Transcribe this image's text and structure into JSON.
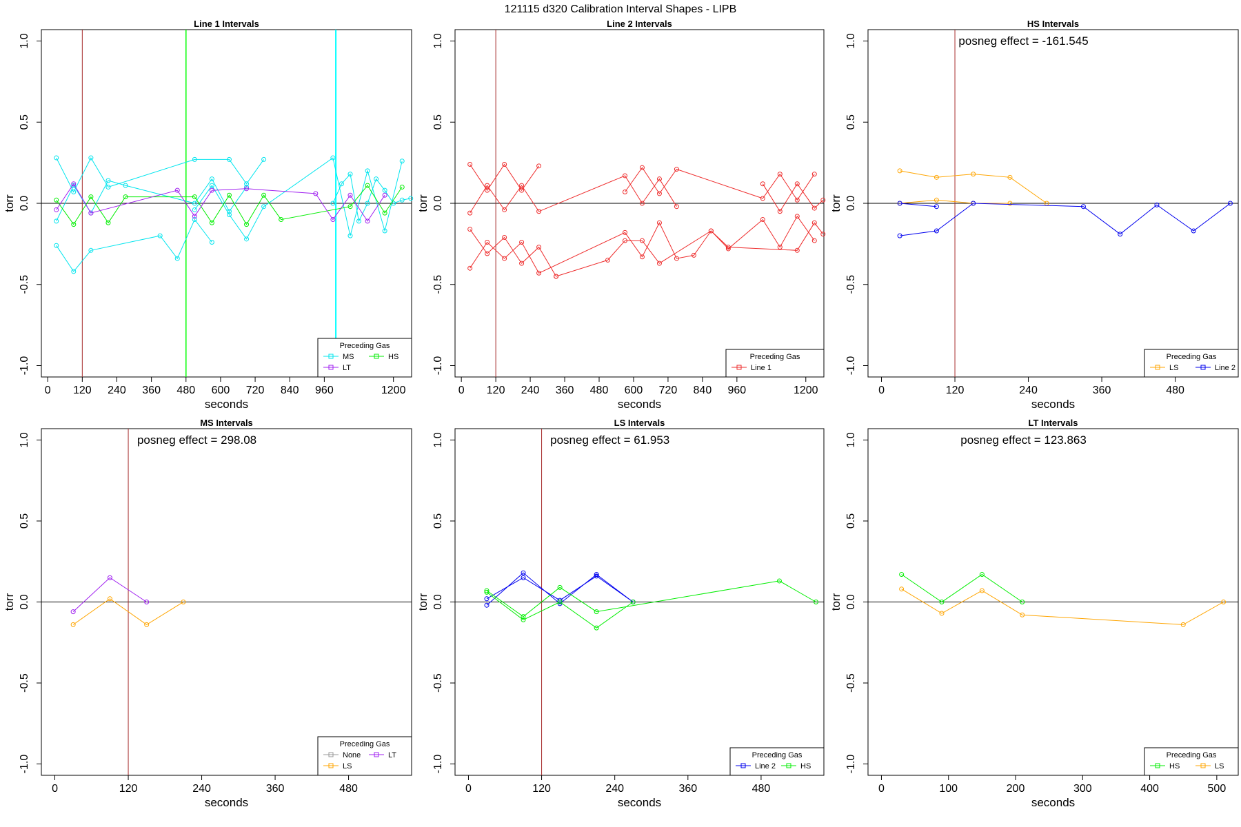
{
  "figure_title": "121115   d320   Calibration Interval Shapes - LIPB",
  "chart_data": [
    {
      "type": "line",
      "title": "Line 1 Intervals",
      "xlabel": "seconds",
      "ylabel": "torr",
      "xlim": [
        -22,
        1263
      ],
      "ylim": [
        -1.07,
        1.07
      ],
      "xticks": [
        0,
        120,
        240,
        360,
        480,
        600,
        720,
        840,
        960,
        1200
      ],
      "yticks": [
        -1.0,
        -0.5,
        0.0,
        0.5,
        1.0
      ],
      "vlines": [
        {
          "x": 120,
          "color": "#a52a2a",
          "width": 1
        },
        {
          "x": 480,
          "color": "#00ff00",
          "width": 1.5
        },
        {
          "x": 1000,
          "color": "#00ffff",
          "width": 2
        }
      ],
      "hline": 0,
      "legend": {
        "title": "Preceding Gas",
        "position": "bottom-right",
        "columns": 2,
        "items": [
          {
            "label": "MS",
            "color": "#00e5ee"
          },
          {
            "label": "HS",
            "color": "#00ee00"
          },
          {
            "label": "LT",
            "color": "#a020f0"
          }
        ]
      },
      "series": [
        {
          "color": "#00e5ee",
          "x": [
            30,
            90,
            150,
            210,
            510,
            630,
            690,
            750
          ],
          "y": [
            0.28,
            0.07,
            0.28,
            0.1,
            0.27,
            0.27,
            0.12,
            0.27
          ]
        },
        {
          "color": "#00e5ee",
          "x": [
            30,
            90,
            150,
            210,
            270,
            510,
            570,
            630,
            690
          ],
          "y": [
            -0.11,
            0.11,
            -0.06,
            0.14,
            0.11,
            0.0,
            0.15,
            -0.05,
            0.1
          ]
        },
        {
          "color": "#00e5ee",
          "x": [
            30,
            90,
            150,
            390,
            450,
            510,
            570
          ],
          "y": [
            -0.26,
            -0.42,
            -0.29,
            -0.2,
            -0.34,
            -0.1,
            -0.24
          ]
        },
        {
          "color": "#00e5ee",
          "x": [
            510,
            570,
            630,
            690,
            750,
            990,
            1050,
            1110,
            1170,
            1230
          ],
          "y": [
            -0.04,
            0.11,
            -0.07,
            -0.22,
            -0.02,
            0.28,
            -0.2,
            0.2,
            -0.17,
            0.26
          ]
        },
        {
          "color": "#00e5ee",
          "x": [
            990,
            1020,
            1050,
            1080,
            1110,
            1140,
            1170,
            1200,
            1230,
            1260
          ],
          "y": [
            0.0,
            0.12,
            0.18,
            -0.11,
            0.0,
            0.15,
            0.08,
            0.0,
            0.02,
            0.03
          ]
        },
        {
          "color": "#00ee00",
          "x": [
            30,
            90,
            150,
            210,
            270,
            510,
            570,
            630,
            690,
            750,
            810,
            1050,
            1110,
            1170,
            1230
          ],
          "y": [
            0.02,
            -0.13,
            0.04,
            -0.12,
            0.04,
            0.04,
            -0.12,
            0.05,
            -0.13,
            0.05,
            -0.1,
            -0.02,
            0.11,
            -0.06,
            0.1
          ]
        },
        {
          "color": "#a020f0",
          "x": [
            30,
            90,
            150,
            450,
            510,
            570,
            690,
            930,
            990,
            1050,
            1110,
            1170
          ],
          "y": [
            -0.04,
            0.12,
            -0.06,
            0.08,
            -0.08,
            0.08,
            0.09,
            0.06,
            -0.1,
            0.05,
            -0.11,
            0.05
          ]
        }
      ]
    },
    {
      "type": "line",
      "title": "Line 2 Intervals",
      "xlabel": "seconds",
      "ylabel": "torr",
      "xlim": [
        -22,
        1263
      ],
      "ylim": [
        -1.07,
        1.07
      ],
      "xticks": [
        0,
        120,
        240,
        360,
        480,
        600,
        720,
        840,
        960,
        1200
      ],
      "yticks": [
        -1.0,
        -0.5,
        0.0,
        0.5,
        1.0
      ],
      "vlines": [
        {
          "x": 120,
          "color": "#a52a2a",
          "width": 1
        }
      ],
      "hline": 0,
      "legend": {
        "title": "Preceding Gas",
        "position": "bottom-right",
        "columns": 1,
        "items": [
          {
            "label": "Line 1",
            "color": "#ee2c2c"
          }
        ]
      },
      "series": [
        {
          "color": "#ee2c2c",
          "x": [
            30,
            90,
            150,
            210,
            270
          ],
          "y": [
            0.24,
            0.08,
            0.24,
            0.08,
            0.23
          ]
        },
        {
          "color": "#ee2c2c",
          "x": [
            30,
            90,
            150,
            210,
            270,
            570,
            630,
            690,
            750
          ],
          "y": [
            -0.06,
            0.11,
            -0.04,
            0.11,
            -0.05,
            0.17,
            0.0,
            0.15,
            -0.02
          ]
        },
        {
          "color": "#ee2c2c",
          "x": [
            570,
            630,
            690,
            750,
            1050,
            1110,
            1170,
            1230
          ],
          "y": [
            0.07,
            0.22,
            0.06,
            0.21,
            0.03,
            0.18,
            0.02,
            0.18
          ]
        },
        {
          "color": "#ee2c2c",
          "x": [
            1050,
            1110,
            1170,
            1230,
            1260
          ],
          "y": [
            0.12,
            -0.05,
            0.12,
            -0.03,
            0.02
          ]
        },
        {
          "color": "#ee2c2c",
          "x": [
            30,
            90,
            150,
            210,
            270,
            330
          ],
          "y": [
            -0.16,
            -0.31,
            -0.21,
            -0.37,
            -0.27,
            -0.45
          ]
        },
        {
          "color": "#ee2c2c",
          "x": [
            30,
            90,
            150,
            210,
            270,
            570,
            630,
            690,
            750,
            810,
            870,
            930,
            1050,
            1110,
            1170,
            1230
          ],
          "y": [
            -0.4,
            -0.24,
            -0.34,
            -0.24,
            -0.43,
            -0.18,
            -0.33,
            -0.12,
            -0.34,
            -0.32,
            -0.17,
            -0.28,
            -0.1,
            -0.27,
            -0.08,
            -0.23
          ]
        },
        {
          "color": "#ee2c2c",
          "x": [
            330,
            510,
            570,
            630,
            690,
            870,
            930,
            1170,
            1230,
            1260
          ],
          "y": [
            -0.45,
            -0.35,
            -0.23,
            -0.23,
            -0.37,
            -0.17,
            -0.27,
            -0.29,
            -0.12,
            -0.19
          ]
        }
      ]
    },
    {
      "type": "line",
      "title": "HS Intervals",
      "annotation": "posneg effect = -161.545",
      "xlabel": "seconds",
      "ylabel": "torr",
      "xlim": [
        -22,
        583
      ],
      "ylim": [
        -1.07,
        1.07
      ],
      "xticks": [
        0,
        120,
        240,
        360,
        480
      ],
      "yticks": [
        -1.0,
        -0.5,
        0.0,
        0.5,
        1.0
      ],
      "vlines": [
        {
          "x": 120,
          "color": "#a52a2a",
          "width": 1
        }
      ],
      "hline": 0,
      "legend": {
        "title": "Preceding Gas",
        "position": "bottom-right",
        "columns": 2,
        "items": [
          {
            "label": "LS",
            "color": "#ffa500"
          },
          {
            "label": "Line 2",
            "color": "#0000ee"
          }
        ]
      },
      "series": [
        {
          "color": "#ffa500",
          "x": [
            30,
            90,
            150,
            210,
            270
          ],
          "y": [
            0.2,
            0.16,
            0.18,
            0.16,
            0.0
          ]
        },
        {
          "color": "#ffa500",
          "x": [
            30,
            90,
            150,
            210
          ],
          "y": [
            0.0,
            0.02,
            0.0,
            0.0
          ]
        },
        {
          "color": "#0000ee",
          "x": [
            30,
            90,
            150,
            330,
            390,
            450,
            510,
            570
          ],
          "y": [
            -0.2,
            -0.17,
            0.0,
            -0.02,
            -0.19,
            -0.01,
            -0.17,
            0.0
          ]
        },
        {
          "color": "#0000ee",
          "x": [
            30,
            90
          ],
          "y": [
            0.0,
            -0.02
          ]
        }
      ]
    },
    {
      "type": "line",
      "title": "MS Intervals",
      "annotation": "posneg effect = 298.08",
      "xlabel": "seconds",
      "ylabel": "torr",
      "xlim": [
        -22,
        583
      ],
      "ylim": [
        -1.07,
        1.07
      ],
      "xticks": [
        0,
        120,
        240,
        360,
        480
      ],
      "yticks": [
        -1.0,
        -0.5,
        0.0,
        0.5,
        1.0
      ],
      "vlines": [
        {
          "x": 120,
          "color": "#a52a2a",
          "width": 1
        }
      ],
      "hline": 0,
      "legend": {
        "title": "Preceding Gas",
        "position": "bottom-right",
        "columns": 2,
        "items": [
          {
            "label": "None",
            "color": "#999999"
          },
          {
            "label": "LT",
            "color": "#a020f0"
          },
          {
            "label": "LS",
            "color": "#ffa500"
          }
        ]
      },
      "series": [
        {
          "color": "#a020f0",
          "x": [
            30,
            90,
            150
          ],
          "y": [
            -0.06,
            0.15,
            0.0
          ]
        },
        {
          "color": "#ffa500",
          "x": [
            30,
            90,
            150,
            210
          ],
          "y": [
            -0.14,
            0.02,
            -0.14,
            0.0
          ]
        }
      ]
    },
    {
      "type": "line",
      "title": "LS Intervals",
      "annotation": "posneg effect = 61.953",
      "xlabel": "seconds",
      "ylabel": "torr",
      "xlim": [
        -22,
        583
      ],
      "ylim": [
        -1.07,
        1.07
      ],
      "xticks": [
        0,
        120,
        240,
        360,
        480
      ],
      "yticks": [
        -1.0,
        -0.5,
        0.0,
        0.5,
        1.0
      ],
      "vlines": [
        {
          "x": 120,
          "color": "#a52a2a",
          "width": 1
        }
      ],
      "hline": 0,
      "legend": {
        "title": "Preceding Gas",
        "position": "bottom-right",
        "columns": 2,
        "items": [
          {
            "label": "Line 2",
            "color": "#0000ee"
          },
          {
            "label": "HS",
            "color": "#00ee00"
          }
        ]
      },
      "series": [
        {
          "color": "#0000ee",
          "x": [
            30,
            90,
            150,
            210,
            270
          ],
          "y": [
            -0.02,
            0.18,
            -0.01,
            0.17,
            0.0
          ]
        },
        {
          "color": "#0000ee",
          "x": [
            30,
            90,
            150,
            210,
            270
          ],
          "y": [
            0.02,
            0.15,
            0.01,
            0.16,
            0.0
          ]
        },
        {
          "color": "#00ee00",
          "x": [
            30,
            90,
            150,
            210,
            510,
            570
          ],
          "y": [
            0.07,
            -0.09,
            0.09,
            -0.06,
            0.13,
            0.0
          ]
        },
        {
          "color": "#00ee00",
          "x": [
            30,
            90,
            150,
            210,
            270
          ],
          "y": [
            0.06,
            -0.11,
            0.0,
            -0.16,
            0.0
          ]
        }
      ]
    },
    {
      "type": "line",
      "title": "LT Intervals",
      "annotation": "posneg effect = 123.863",
      "xlabel": "seconds",
      "ylabel": "torr",
      "xlim": [
        -20,
        532
      ],
      "ylim": [
        -1.07,
        1.07
      ],
      "xticks": [
        0,
        100,
        200,
        300,
        400,
        500
      ],
      "yticks": [
        -1.0,
        -0.5,
        0.0,
        0.5,
        1.0
      ],
      "vlines": [],
      "hline": 0,
      "legend": {
        "title": "Preceding Gas",
        "position": "bottom-right",
        "columns": 2,
        "items": [
          {
            "label": "HS",
            "color": "#00ee00"
          },
          {
            "label": "LS",
            "color": "#ffa500"
          }
        ]
      },
      "series": [
        {
          "color": "#00ee00",
          "x": [
            30,
            90,
            150,
            210
          ],
          "y": [
            0.17,
            0.0,
            0.17,
            0.0
          ]
        },
        {
          "color": "#ffa500",
          "x": [
            30,
            90,
            150,
            210,
            450,
            510
          ],
          "y": [
            0.08,
            -0.07,
            0.07,
            -0.08,
            -0.14,
            0.0
          ]
        }
      ]
    }
  ]
}
